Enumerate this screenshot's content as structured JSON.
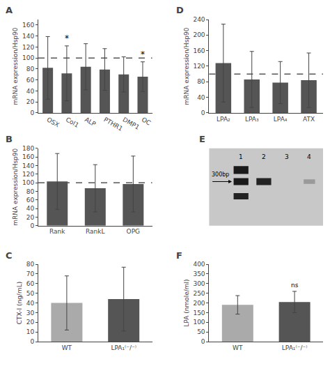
{
  "chart_data": [
    {
      "type": "bar",
      "title": "A",
      "categories": [
        "OSX",
        "Col1",
        "ALP",
        "PTHR1",
        "DMP1",
        "OC"
      ],
      "values": [
        82,
        72,
        84,
        79,
        70,
        66
      ],
      "errors": [
        57,
        50,
        42,
        38,
        32,
        27
      ],
      "reference_line": 100,
      "ylim": [
        0,
        170
      ],
      "yticks": [
        0,
        20,
        40,
        60,
        80,
        100,
        120,
        140,
        160
      ],
      "ylabel": "mRNA expression/Hsp90",
      "color": "#555555",
      "annotations": [
        {
          "text": "*",
          "category": "Col1"
        },
        {
          "text": "*",
          "category": "OC"
        }
      ],
      "grid": false
    },
    {
      "type": "bar",
      "title": "B",
      "categories": [
        "Rank",
        "RankL",
        "OPG"
      ],
      "values": [
        103,
        87,
        97
      ],
      "errors": [
        65,
        55,
        65
      ],
      "reference_line": 100,
      "ylim": [
        0,
        180
      ],
      "yticks": [
        0,
        20,
        40,
        60,
        80,
        100,
        120,
        140,
        160,
        180
      ],
      "ylabel": "mRNA expression/Hsp90",
      "color": "#555555",
      "grid": false
    },
    {
      "type": "bar",
      "title": "C",
      "categories": [
        "WT",
        "LPA₁⁽⁻/⁻⁾"
      ],
      "values": [
        40,
        44
      ],
      "errors": [
        28,
        33
      ],
      "ylim": [
        0,
        80
      ],
      "yticks": [
        0,
        10,
        20,
        30,
        40,
        50,
        60,
        70,
        80
      ],
      "ylabel": "CTX-I (ng/mL)",
      "colors": [
        "#aaaaaa",
        "#555555"
      ],
      "grid": false
    },
    {
      "type": "bar",
      "title": "D",
      "categories": [
        "LPA₂",
        "LPA₃",
        "LPA₄",
        "ATX"
      ],
      "values": [
        128,
        86,
        78,
        84
      ],
      "errors": [
        100,
        72,
        54,
        70
      ],
      "reference_line": 100,
      "ylim": [
        0,
        240
      ],
      "yticks": [
        0,
        40,
        80,
        120,
        160,
        200,
        240
      ],
      "ylabel": "mRNA expression/Hsp90",
      "color": "#555555",
      "grid": false
    },
    {
      "type": "gel",
      "title": "E",
      "categories": [
        "1",
        "2",
        "3",
        "4"
      ],
      "annotations": [
        "300bp"
      ],
      "tick_labels": false
    },
    {
      "type": "bar",
      "title": "F",
      "categories": [
        "WT",
        "LPA₁⁽⁻/⁻⁾"
      ],
      "values": [
        190,
        205
      ],
      "errors": [
        48,
        55
      ],
      "ylim": [
        0,
        400
      ],
      "yticks": [
        0,
        50,
        100,
        150,
        200,
        250,
        300,
        350,
        400
      ],
      "ylabel": "LPA (nmole/ml)",
      "colors": [
        "#aaaaaa",
        "#555555"
      ],
      "annotations": [
        {
          "text": "ns",
          "category": "LPA₁⁽⁻/⁻⁾"
        }
      ],
      "grid": false
    }
  ]
}
